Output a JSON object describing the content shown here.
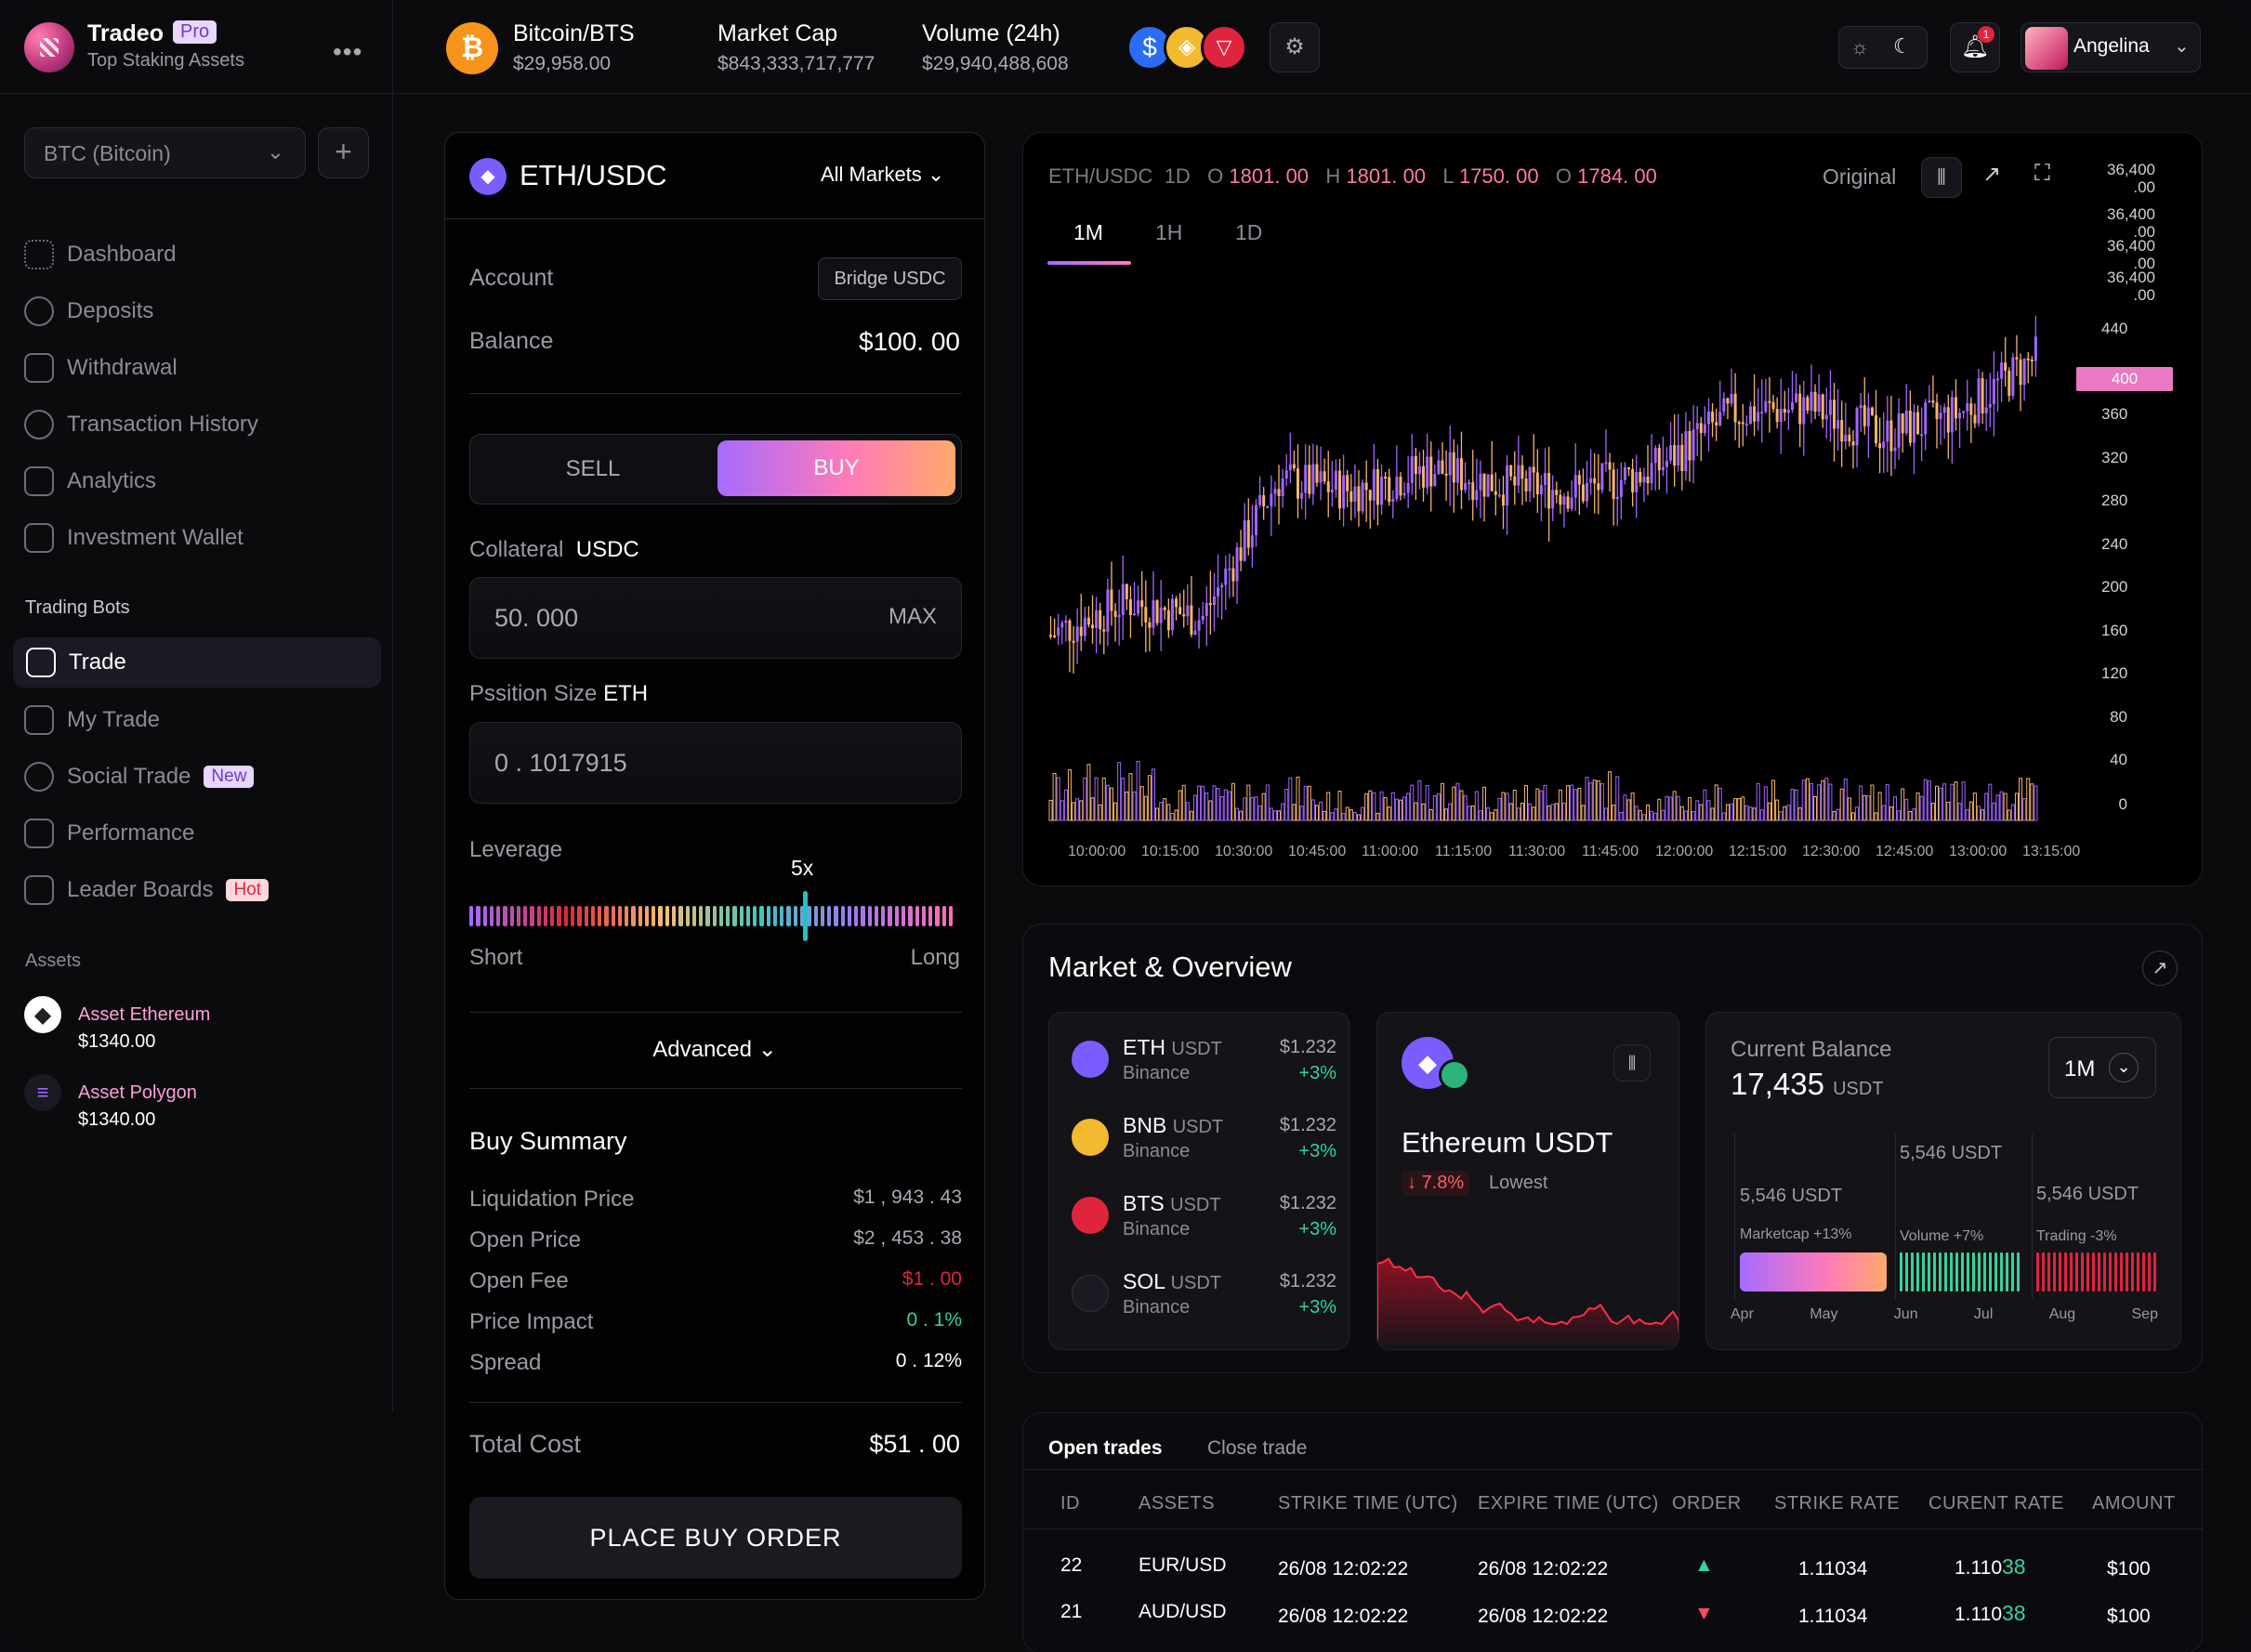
{
  "app": {
    "name": "Tradeo",
    "badge": "Pro",
    "subtitle": "Top Staking Assets",
    "more": "•••"
  },
  "sidebar": {
    "selector": "BTC (Bitcoin)",
    "add": "+",
    "items": [
      {
        "label": "Dashboard",
        "icon": "dashboard-icon"
      },
      {
        "label": "Deposits",
        "icon": "deposit-icon"
      },
      {
        "label": "Withdrawal",
        "icon": "withdraw-icon"
      },
      {
        "label": "Transaction History",
        "icon": "history-icon"
      },
      {
        "label": "Analytics",
        "icon": "analytics-icon"
      },
      {
        "label": "Investment Wallet",
        "icon": "wallet-icon"
      }
    ],
    "bots_title": "Trading Bots",
    "bots": [
      {
        "label": "Trade",
        "icon": "trade-icon",
        "active": true
      },
      {
        "label": "My Trade",
        "icon": "mytrade-icon"
      },
      {
        "label": "Social Trade",
        "icon": "social-icon",
        "tag": "New"
      },
      {
        "label": "Performance",
        "icon": "performance-icon"
      },
      {
        "label": "Leader Boards",
        "icon": "trophy-icon",
        "tag": "Hot"
      }
    ],
    "assets_title": "Assets",
    "assets": [
      {
        "name": "Asset Ethereum",
        "value": "$1340.00"
      },
      {
        "name": "Asset Polygon",
        "value": "$1340.00"
      }
    ]
  },
  "topbar": {
    "pair": "Bitcoin/BTS",
    "pair_value": "$29,958.00",
    "mcap_label": "Market Cap",
    "mcap_value": "$843,333,717,777",
    "vol_label": "Volume (24h)",
    "vol_value": "$29,940,488,608",
    "notif_count": "1",
    "user": "Angelina"
  },
  "trade": {
    "pair": "ETH/USDC",
    "markets": "All Markets",
    "account_label": "Account",
    "bridge": "Bridge USDC",
    "balance_label": "Balance",
    "balance": "$100. 00",
    "sell": "SELL",
    "buy": "BUY",
    "collateral_label": "Collateral",
    "collateral_unit": "USDC",
    "collateral_value": "50. 000",
    "max": "MAX",
    "size_label": "Pssition Size",
    "size_unit": "ETH",
    "size_value": "0 . 1017915",
    "leverage_label": "Leverage",
    "leverage_value": "5x",
    "leverage_level": 0.69,
    "short": "Short",
    "long": "Long",
    "advanced": "Advanced",
    "summary_title": "Buy Summary",
    "summary": [
      {
        "label": "Liquidation Price",
        "value": "$1 , 943 . 43",
        "color": "#a9a9b3"
      },
      {
        "label": "Open Price",
        "value": "$2 , 453 . 38",
        "color": "#a9a9b3"
      },
      {
        "label": "Open Fee",
        "value": "$1 . 00",
        "color": "#e0243d"
      },
      {
        "label": "Price Impact",
        "value": "0 . 1%",
        "color": "#34d399"
      },
      {
        "label": "Spread",
        "value": "0 . 12%",
        "color": "#ffffff"
      }
    ],
    "total_label": "Total Cost",
    "total": "$51 . 00",
    "place": "PLACE BUY ORDER"
  },
  "chart": {
    "pair": "ETH/USDC",
    "tf": "1D",
    "o": "1801. 00",
    "h": "1801. 00",
    "l": "1750. 00",
    "c": "1784. 00",
    "o_label": "O",
    "h_label": "H",
    "l_label": "L",
    "c_label": "O",
    "mode": "Original",
    "tabs": [
      "1M",
      "1H",
      "1D"
    ],
    "y_top": [
      "36,400\n.00",
      "36,400\n.00",
      "36,400\n.00",
      "36,400\n.00"
    ],
    "y_ticks": [
      "440",
      "400",
      "360",
      "320",
      "280",
      "240",
      "200",
      "160",
      "120",
      "80",
      "40",
      "0"
    ],
    "current": "400",
    "x_ticks": [
      "10:00:00",
      "10:15:00",
      "10:30:00",
      "10:45:00",
      "11:00:00",
      "11:15:00",
      "11:30:00",
      "11:45:00",
      "12:00:00",
      "12:15:00",
      "12:30:00",
      "12:45:00",
      "13:00:00",
      "13:15:00"
    ]
  },
  "chart_data": {
    "type": "candlestick",
    "x": [
      "10:00:00",
      "10:15:00",
      "10:30:00",
      "10:45:00",
      "11:00:00",
      "11:15:00",
      "11:30:00",
      "11:45:00",
      "12:00:00",
      "12:15:00",
      "12:30:00",
      "12:45:00",
      "13:00:00",
      "13:15:00"
    ],
    "close": [
      150,
      180,
      165,
      290,
      280,
      300,
      285,
      280,
      300,
      350,
      355,
      330,
      350,
      400
    ],
    "volume": [
      35,
      40,
      25,
      30,
      20,
      30,
      25,
      35,
      20,
      25,
      30,
      25,
      30,
      30
    ],
    "ylim": [
      0,
      440
    ]
  },
  "market": {
    "title": "Market & Overview",
    "rows": [
      {
        "sym": "ETH",
        "unit": "USDT",
        "ex": "Binance",
        "price": "$1.232",
        "chg": "+3%",
        "color": "#7b5cff"
      },
      {
        "sym": "BNB",
        "unit": "USDT",
        "ex": "Binance",
        "price": "$1.232",
        "chg": "+3%",
        "color": "#f3ba2f"
      },
      {
        "sym": "BTS",
        "unit": "USDT",
        "ex": "Binance",
        "price": "$1.232",
        "chg": "+3%",
        "color": "#e0243d"
      },
      {
        "sym": "SOL",
        "unit": "USDT",
        "ex": "Binance",
        "price": "$1.232",
        "chg": "+3%",
        "color": "#1a1a22"
      }
    ],
    "eth_title": "Ethereum",
    "eth_unit": "USDT",
    "eth_change": "↓ 7.8%",
    "eth_note": "Lowest",
    "bal_label": "Current Balance",
    "bal_value": "17,435",
    "bal_unit": "USDT",
    "bal_period": "1M",
    "bars": [
      {
        "value": "5,546 USDT",
        "label": "Marketcap +13%"
      },
      {
        "value": "5,546 USDT",
        "label": "Volume +7%"
      },
      {
        "value": "5,546 USDT",
        "label": "Trading -3%"
      }
    ],
    "months": [
      "Apr",
      "May",
      "Jun",
      "Jul",
      "Aug",
      "Sep"
    ]
  },
  "trades": {
    "tab_open": "Open trades",
    "tab_close": "Close trade",
    "headers": [
      "ID",
      "ASSETS",
      "STRIKE TIME (UTC)",
      "EXPIRE TIME (UTC)",
      "ORDER",
      "STRIKE RATE",
      "CURENT RATE",
      "AMOUNT"
    ],
    "rows": [
      {
        "id": "22",
        "asset": "EUR/USD",
        "strike": "26/08 12:02:22",
        "expire": "26/08 12:02:22",
        "order": "up",
        "rate": "1.11034",
        "cur_a": "1.110",
        "cur_b": "38",
        "amount": "$100"
      },
      {
        "id": "21",
        "asset": "AUD/USD",
        "strike": "26/08 12:02:22",
        "expire": "26/08 12:02:22",
        "order": "down",
        "rate": "1.11034",
        "cur_a": "1.110",
        "cur_b": "38",
        "amount": "$100"
      }
    ]
  }
}
